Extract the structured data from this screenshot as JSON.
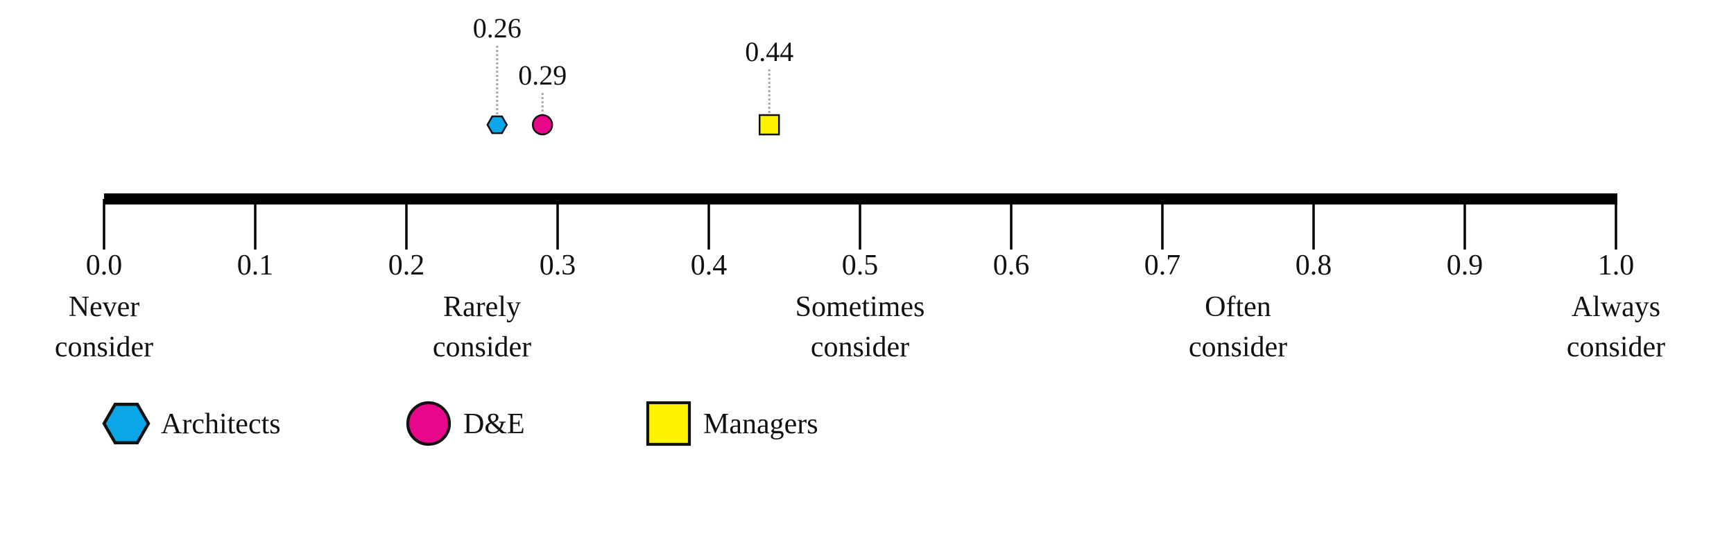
{
  "chart_data": {
    "type": "scatter",
    "xlim": [
      0.0,
      1.0
    ],
    "ticks": [
      "0.0",
      "0.1",
      "0.2",
      "0.3",
      "0.4",
      "0.5",
      "0.6",
      "0.7",
      "0.8",
      "0.9",
      "1.0"
    ],
    "scale_labels": [
      {
        "at": 0.0,
        "lines": [
          "Never",
          "consider"
        ]
      },
      {
        "at": 0.25,
        "lines": [
          "Rarely",
          "consider"
        ]
      },
      {
        "at": 0.5,
        "lines": [
          "Sometimes",
          "consider"
        ]
      },
      {
        "at": 0.75,
        "lines": [
          "Often",
          "consider"
        ]
      },
      {
        "at": 1.0,
        "lines": [
          "Always",
          "consider"
        ]
      }
    ],
    "series": [
      {
        "name": "Architects",
        "value": 0.26,
        "label": "0.26",
        "marker": "hexagon",
        "color": "#0aa6e8"
      },
      {
        "name": "D&E",
        "value": 0.29,
        "label": "0.29",
        "marker": "circle",
        "color": "#e8068a"
      },
      {
        "name": "Managers",
        "value": 0.44,
        "label": "0.44",
        "marker": "square",
        "color": "#fff200"
      }
    ],
    "legend_position": "bottom-left"
  }
}
